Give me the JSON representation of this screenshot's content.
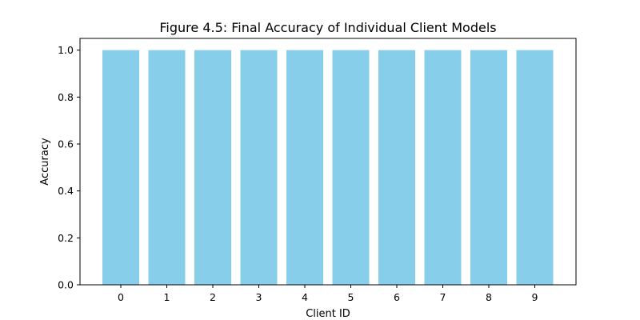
{
  "chart_data": {
    "type": "bar",
    "title": "Figure 4.5: Final Accuracy of Individual Client Models",
    "xlabel": "Client ID",
    "ylabel": "Accuracy",
    "categories": [
      "0",
      "1",
      "2",
      "3",
      "4",
      "5",
      "6",
      "7",
      "8",
      "9"
    ],
    "values": [
      1.0,
      1.0,
      1.0,
      1.0,
      1.0,
      1.0,
      1.0,
      1.0,
      1.0,
      1.0
    ],
    "ylim": [
      0,
      1.05
    ],
    "yticks": [
      "0.0",
      "0.2",
      "0.4",
      "0.6",
      "0.8",
      "1.0"
    ],
    "grid": false,
    "bar_color": "#87CEEB"
  }
}
